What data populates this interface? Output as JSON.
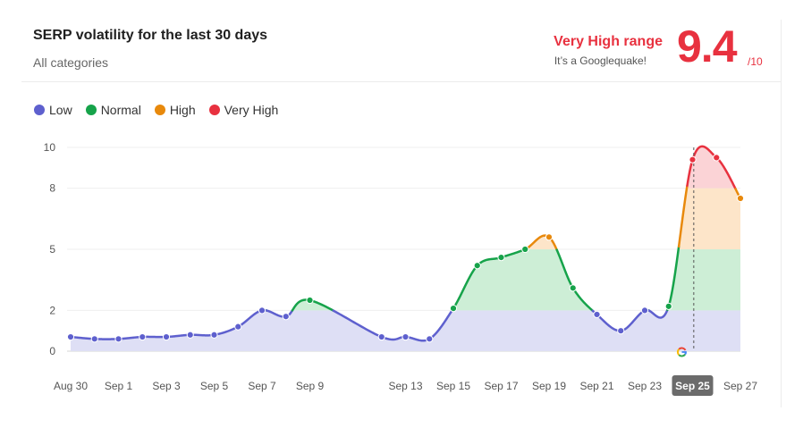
{
  "header": {
    "title": "SERP volatility for the last 30 days",
    "subtitle": "All categories",
    "range_label": "Very High range",
    "range_subtext": "It’s a Googlequake!",
    "score": "9.4",
    "score_max": "/10"
  },
  "colors": {
    "low": "#5e60ce",
    "normal": "#16a34a",
    "high": "#e8890c",
    "very_high": "#e8313f",
    "low_fill": "#dedff5",
    "normal_fill": "#cdeed6",
    "high_fill": "#fde5c9",
    "very_high_fill": "#fbd3d6",
    "selected_tick_bg": "#6b6b6b"
  },
  "legend": [
    {
      "label": "Low",
      "color": "#5e60ce"
    },
    {
      "label": "Normal",
      "color": "#16a34a"
    },
    {
      "label": "High",
      "color": "#e8890c"
    },
    {
      "label": "Very High",
      "color": "#e8313f"
    }
  ],
  "chart_data": {
    "type": "area",
    "title": "SERP volatility for the last 30 days",
    "xlabel": "",
    "ylabel": "",
    "ylim": [
      0,
      10
    ],
    "y_ticks": [
      0,
      2,
      5,
      8,
      10
    ],
    "grid": true,
    "legend_position": "top-left",
    "thresholds": {
      "low_max": 2,
      "normal_max": 5,
      "high_max": 8,
      "very_high_max": 10
    },
    "x": [
      "Aug 30",
      "Aug 31",
      "Sep 1",
      "Sep 2",
      "Sep 3",
      "Sep 4",
      "Sep 5",
      "Sep 6",
      "Sep 7",
      "Sep 8",
      "Sep 9",
      "Sep 10",
      "Sep 11",
      "Sep 12",
      "Sep 13",
      "Sep 14",
      "Sep 15",
      "Sep 16",
      "Sep 17",
      "Sep 18",
      "Sep 19",
      "Sep 20",
      "Sep 21",
      "Sep 22",
      "Sep 23",
      "Sep 24",
      "Sep 25",
      "Sep 26",
      "Sep 27"
    ],
    "values": [
      0.7,
      0.6,
      0.6,
      0.7,
      0.7,
      0.8,
      0.8,
      1.2,
      2.0,
      1.7,
      2.5,
      null,
      null,
      0.7,
      0.7,
      0.6,
      2.1,
      4.2,
      4.6,
      5.0,
      5.6,
      3.1,
      1.8,
      1.0,
      2.0,
      2.2,
      9.4,
      9.5,
      7.5
    ],
    "x_tick_labels": [
      "Aug 30",
      "Sep 1",
      "Sep 3",
      "Sep 5",
      "Sep 7",
      "Sep 9",
      "Sep 13",
      "Sep 15",
      "Sep 17",
      "Sep 19",
      "Sep 21",
      "Sep 23",
      "Sep 25",
      "Sep 27"
    ],
    "selected": "Sep 25",
    "annotation_icon": "google-g-icon"
  }
}
